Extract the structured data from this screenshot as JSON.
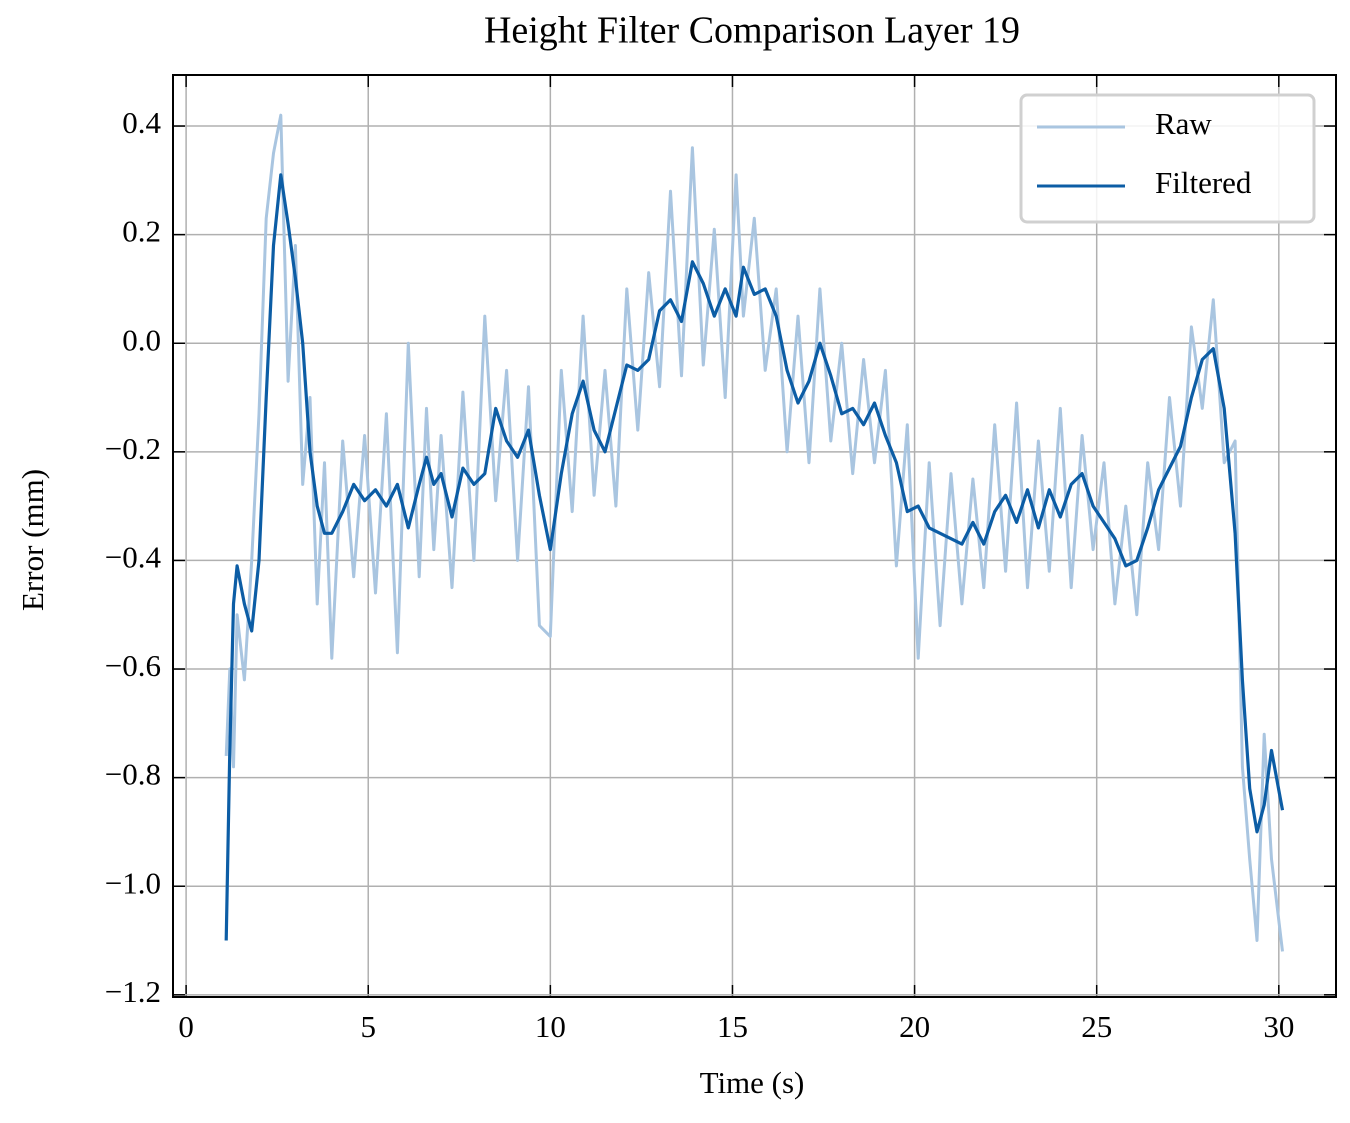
{
  "chart_data": {
    "type": "line",
    "title": "Height Filter Comparison Layer 19",
    "x_label": "Time (s)",
    "y_label": "Error (mm)",
    "x": [
      1.1,
      1.2,
      1.3,
      1.4,
      1.6,
      1.8,
      2.0,
      2.2,
      2.4,
      2.6,
      2.8,
      3.0,
      3.2,
      3.4,
      3.6,
      3.8,
      4.0,
      4.3,
      4.6,
      4.9,
      5.2,
      5.5,
      5.8,
      6.1,
      6.4,
      6.6,
      6.8,
      7.0,
      7.3,
      7.6,
      7.9,
      8.2,
      8.5,
      8.8,
      9.1,
      9.4,
      9.7,
      10.0,
      10.3,
      10.6,
      10.9,
      11.2,
      11.5,
      11.8,
      12.1,
      12.4,
      12.7,
      13.0,
      13.3,
      13.6,
      13.9,
      14.2,
      14.5,
      14.8,
      15.1,
      15.3,
      15.6,
      15.9,
      16.2,
      16.5,
      16.8,
      17.1,
      17.4,
      17.7,
      18.0,
      18.3,
      18.6,
      18.9,
      19.2,
      19.5,
      19.8,
      20.1,
      20.4,
      20.7,
      21.0,
      21.3,
      21.6,
      21.9,
      22.2,
      22.5,
      22.8,
      23.1,
      23.4,
      23.7,
      24.0,
      24.3,
      24.6,
      24.9,
      25.2,
      25.5,
      25.8,
      26.1,
      26.4,
      26.7,
      27.0,
      27.3,
      27.6,
      27.9,
      28.2,
      28.5,
      28.8,
      29.0,
      29.2,
      29.4,
      29.6,
      29.8,
      30.1
    ],
    "series": [
      {
        "name": "Raw",
        "color": "#a9c5e0",
        "values": [
          -0.76,
          -0.6,
          -0.78,
          -0.5,
          -0.62,
          -0.4,
          -0.13,
          0.23,
          0.35,
          0.42,
          -0.07,
          0.18,
          -0.26,
          -0.1,
          -0.48,
          -0.22,
          -0.58,
          -0.18,
          -0.43,
          -0.17,
          -0.46,
          -0.13,
          -0.57,
          0.0,
          -0.43,
          -0.12,
          -0.38,
          -0.17,
          -0.45,
          -0.09,
          -0.4,
          0.05,
          -0.29,
          -0.05,
          -0.4,
          -0.08,
          -0.52,
          -0.54,
          -0.05,
          -0.31,
          0.05,
          -0.28,
          -0.05,
          -0.3,
          0.1,
          -0.16,
          0.13,
          -0.08,
          0.28,
          -0.06,
          0.36,
          -0.04,
          0.21,
          -0.1,
          0.31,
          0.05,
          0.23,
          -0.05,
          0.1,
          -0.2,
          0.05,
          -0.22,
          0.1,
          -0.18,
          0.0,
          -0.24,
          -0.03,
          -0.22,
          -0.05,
          -0.41,
          -0.15,
          -0.58,
          -0.22,
          -0.52,
          -0.24,
          -0.48,
          -0.25,
          -0.45,
          -0.15,
          -0.42,
          -0.11,
          -0.45,
          -0.18,
          -0.42,
          -0.12,
          -0.45,
          -0.17,
          -0.38,
          -0.22,
          -0.48,
          -0.3,
          -0.5,
          -0.22,
          -0.38,
          -0.1,
          -0.3,
          0.03,
          -0.12,
          0.08,
          -0.22,
          -0.18,
          -0.78,
          -0.95,
          -1.1,
          -0.72,
          -0.95,
          -1.12
        ]
      },
      {
        "name": "Filtered",
        "color": "#0c5da5",
        "values": [
          -1.1,
          -0.75,
          -0.48,
          -0.41,
          -0.48,
          -0.53,
          -0.4,
          -0.1,
          0.18,
          0.31,
          0.22,
          0.12,
          0.0,
          -0.2,
          -0.3,
          -0.35,
          -0.35,
          -0.31,
          -0.26,
          -0.29,
          -0.27,
          -0.3,
          -0.26,
          -0.34,
          -0.26,
          -0.21,
          -0.26,
          -0.24,
          -0.32,
          -0.23,
          -0.26,
          -0.24,
          -0.12,
          -0.18,
          -0.21,
          -0.16,
          -0.28,
          -0.38,
          -0.24,
          -0.13,
          -0.07,
          -0.16,
          -0.2,
          -0.12,
          -0.04,
          -0.05,
          -0.03,
          0.06,
          0.08,
          0.04,
          0.15,
          0.11,
          0.05,
          0.1,
          0.05,
          0.14,
          0.09,
          0.1,
          0.05,
          -0.05,
          -0.11,
          -0.07,
          0.0,
          -0.06,
          -0.13,
          -0.12,
          -0.15,
          -0.11,
          -0.17,
          -0.22,
          -0.31,
          -0.3,
          -0.34,
          -0.35,
          -0.36,
          -0.37,
          -0.33,
          -0.37,
          -0.31,
          -0.28,
          -0.33,
          -0.27,
          -0.34,
          -0.27,
          -0.32,
          -0.26,
          -0.24,
          -0.3,
          -0.33,
          -0.36,
          -0.41,
          -0.4,
          -0.34,
          -0.27,
          -0.23,
          -0.19,
          -0.1,
          -0.03,
          -0.01,
          -0.12,
          -0.35,
          -0.62,
          -0.82,
          -0.9,
          -0.85,
          -0.75,
          -0.86
        ]
      }
    ],
    "xlim": [
      -0.36,
      31.57
    ],
    "ylim": [
      -1.204,
      0.494
    ],
    "xticks": [
      0,
      5,
      10,
      15,
      20,
      25,
      30
    ],
    "yticks": [
      0.4,
      0.2,
      {
        "value": 0,
        "label": "0.0"
      },
      {
        "value": -0.2,
        "label": "−0.2"
      },
      {
        "value": -0.4,
        "label": "−0.4"
      },
      {
        "value": -0.6,
        "label": "−0.6"
      },
      {
        "value": -0.8,
        "label": "−0.8"
      },
      {
        "value": -1.0,
        "label": "−1.0"
      },
      {
        "value": -1.2,
        "label": "−1.2"
      }
    ],
    "grid": true,
    "legend": "upper right"
  }
}
